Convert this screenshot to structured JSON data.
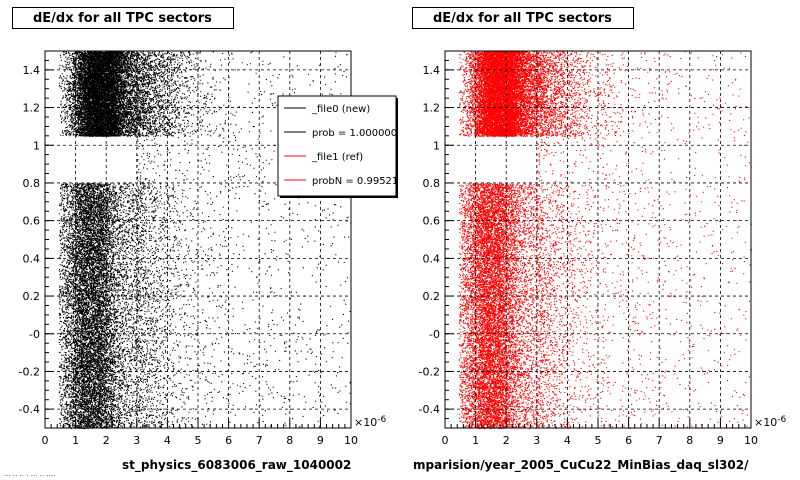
{
  "chart_data": [
    {
      "type": "scatter",
      "title": "dE/dx for all TPC sectors",
      "xlabel": "st_physics_6083006_raw_1040002",
      "x_exponent": "×10",
      "x_exponent_power": "-6",
      "xlim": [
        0,
        10
      ],
      "ylim": [
        -0.5,
        1.5
      ],
      "x_ticks": [
        "0",
        "1",
        "2",
        "3",
        "4",
        "5",
        "6",
        "7",
        "8",
        "9",
        "10"
      ],
      "y_ticks": [
        "-0.4",
        "-0.2",
        "-0",
        "0.2",
        "0.4",
        "0.6",
        "0.8",
        "1",
        "1.2",
        "1.4"
      ],
      "grid": true,
      "series": [
        {
          "name": "_file0 (new)",
          "color": "#000000",
          "bands": [
            {
              "y": [
                -0.5,
                0.8
              ],
              "x_peak": 1.4,
              "x_width": 0.45,
              "density": "high"
            },
            {
              "y": [
                1.05,
                1.5
              ],
              "x_peak": 1.7,
              "x_width": 0.45,
              "density": "high"
            },
            {
              "y": [
                -0.5,
                1.5
              ],
              "x_range": [
                3,
                10
              ],
              "density": "sparse"
            }
          ]
        }
      ],
      "legend": {
        "placement": "top-right",
        "entries": [
          {
            "label": "_file0 (new)",
            "color": "#000000"
          },
          {
            "label": "prob = 1.000000",
            "color": "#000000"
          },
          {
            "label": "_file1 (ref)",
            "color": "#ff0000"
          },
          {
            "label": "probN = 0.99521",
            "color": "#ff0000"
          }
        ]
      }
    },
    {
      "type": "scatter",
      "title": "dE/dx for all TPC sectors",
      "xlabel": "mparision/year_2005_CuCu22_MinBias_daq_sl302/",
      "x_exponent": "×10",
      "x_exponent_power": "-6",
      "xlim": [
        0,
        10
      ],
      "ylim": [
        -0.5,
        1.5
      ],
      "x_ticks": [
        "0",
        "1",
        "2",
        "3",
        "4",
        "5",
        "6",
        "7",
        "8",
        "9",
        "10"
      ],
      "y_ticks": [
        "-0.4",
        "-0.2",
        "-0",
        "0.2",
        "0.4",
        "0.6",
        "0.8",
        "1",
        "1.2",
        "1.4"
      ],
      "grid": true,
      "series": [
        {
          "name": "_file1 (ref)",
          "color": "#ff0000",
          "bands": [
            {
              "y": [
                -0.5,
                0.8
              ],
              "x_peak": 1.4,
              "x_width": 0.45,
              "density": "high"
            },
            {
              "y": [
                1.05,
                1.5
              ],
              "x_peak": 1.7,
              "x_width": 0.45,
              "density": "high"
            },
            {
              "y": [
                -0.5,
                1.5
              ],
              "x_range": [
                3,
                10
              ],
              "density": "sparse"
            }
          ]
        }
      ]
    }
  ],
  "footer_text": "... .. .. . ... .. ...."
}
